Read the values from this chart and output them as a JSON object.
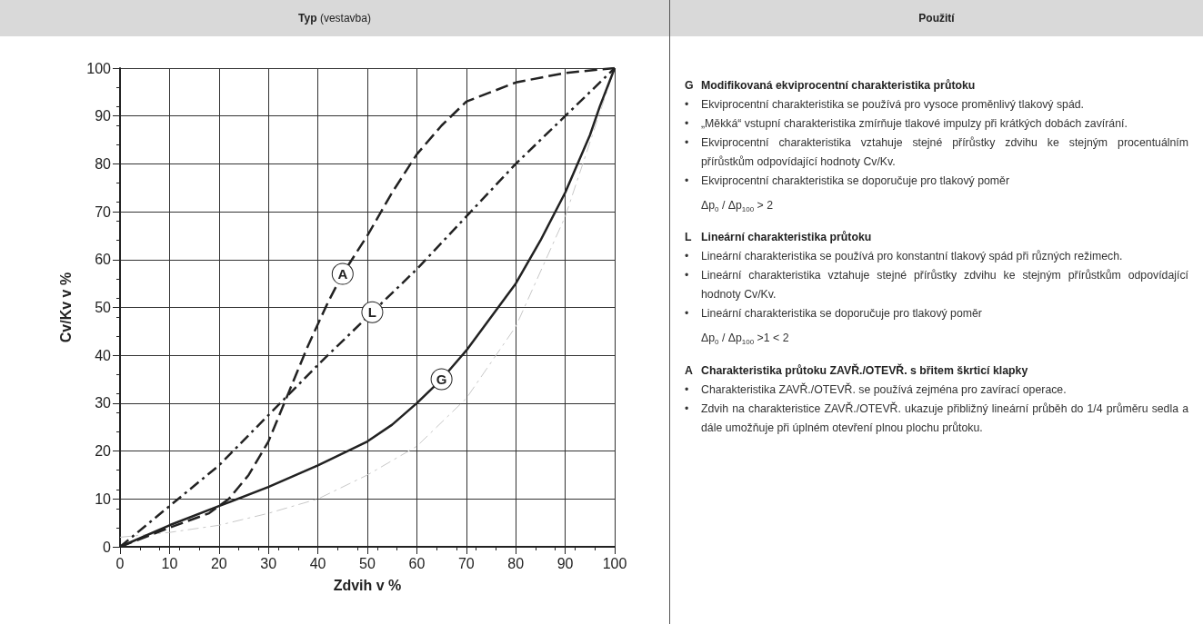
{
  "chart_data": [
    {
      "type": "line",
      "title": "Typ (vestavba)",
      "xlabel": "Zdvih v %",
      "ylabel": "Cv/Kv v %",
      "xlim": [
        0,
        100
      ],
      "xticks": [
        0,
        10,
        20,
        30,
        40,
        50,
        60,
        70,
        80,
        90,
        100
      ],
      "ylim": [
        0,
        100
      ],
      "yticks": [
        0,
        10,
        20,
        30,
        40,
        50,
        60,
        70,
        80,
        90,
        100
      ],
      "grid": true,
      "legend": false,
      "marker": "none",
      "series": [
        {
          "name": "A",
          "color": "#222222",
          "line_style": "dashed",
          "x": [
            0,
            10,
            18,
            22,
            26,
            30,
            34,
            38,
            42,
            45,
            50,
            55,
            60,
            65,
            70,
            80,
            90,
            100
          ],
          "values": [
            0,
            4,
            7,
            10,
            15,
            22,
            32,
            42,
            51,
            57,
            65,
            74,
            82,
            88,
            93,
            97,
            99,
            100
          ]
        },
        {
          "name": "L",
          "color": "#222222",
          "line_style": "dashdot",
          "x": [
            0,
            20,
            40,
            51,
            60,
            80,
            100
          ],
          "values": [
            0,
            17,
            38,
            49,
            58,
            80,
            100
          ]
        },
        {
          "name": "G",
          "color": "#222222",
          "line_style": "solid",
          "x": [
            0,
            10,
            20,
            30,
            40,
            50,
            55,
            60,
            65,
            70,
            80,
            85,
            90,
            95,
            97,
            100
          ],
          "values": [
            0,
            4.5,
            8.5,
            12.5,
            17,
            22,
            25.5,
            30,
            35,
            41,
            55,
            64,
            74,
            86,
            92,
            100
          ]
        },
        {
          "color": "#c8c8c8",
          "line_style": "dashdot",
          "x": [
            0,
            10,
            20,
            30,
            40,
            50,
            60,
            70,
            80,
            90,
            100
          ],
          "values": [
            2,
            3,
            4.5,
            7,
            10,
            15,
            21,
            31,
            46,
            69,
            100
          ]
        }
      ]
    },
    {
      "type": "other",
      "title": "Použití",
      "annotations": [
        "G  Modifikovaná ekviprocentní charakteristika průtoku",
        "•  Ekviprocentní charakteristika se používá pro vysoce proměnlivý tlakový spád.",
        "•  „Měkká“ vstupní charakteristika zmírňuje tlakové impulzy při krátkých dobách zavírání.",
        "•  Ekviprocentní charakteristika vztahuje stejné přírůstky zdvihu ke stejným procentuálním přírůstkům odpovídající hodnoty Cv/Kv.",
        "•  Ekviprocentní charakteristika se doporučuje pro tlakový poměr",
        "Δp$_{0}$ / Δp$_{100}$ > 2",
        "L  Lineární charakteristika průtoku",
        "•  Lineární charakteristika se používá pro konstantní tlakový spád při různých režimech.",
        "•  Lineární charakteristika vztahuje stejné přírůstky zdvihu ke stejným přírůstkům odpovídající hodnoty Cv/Kv.",
        "•  Lineární charakteristika se doporučuje pro tlakový poměr",
        "Δp$_{0}$ / Δp$_{100}$ >1 < 2",
        "A  Charakteristika průtoku ZAVŘ./OTEVŘ. s břitem škrticí klapky",
        "•  Charakteristika ZAVŘ./OTEVŘ. se používá zejména pro zavírací operace.",
        "•  Zdvih na charakteristice ZAVŘ./OTEVŘ. ukazuje přibližný lineární průběh do 1/4 průměru sedla a dále umožňuje při úplném otevření plnou plochu průtoku."
      ]
    }
  ]
}
